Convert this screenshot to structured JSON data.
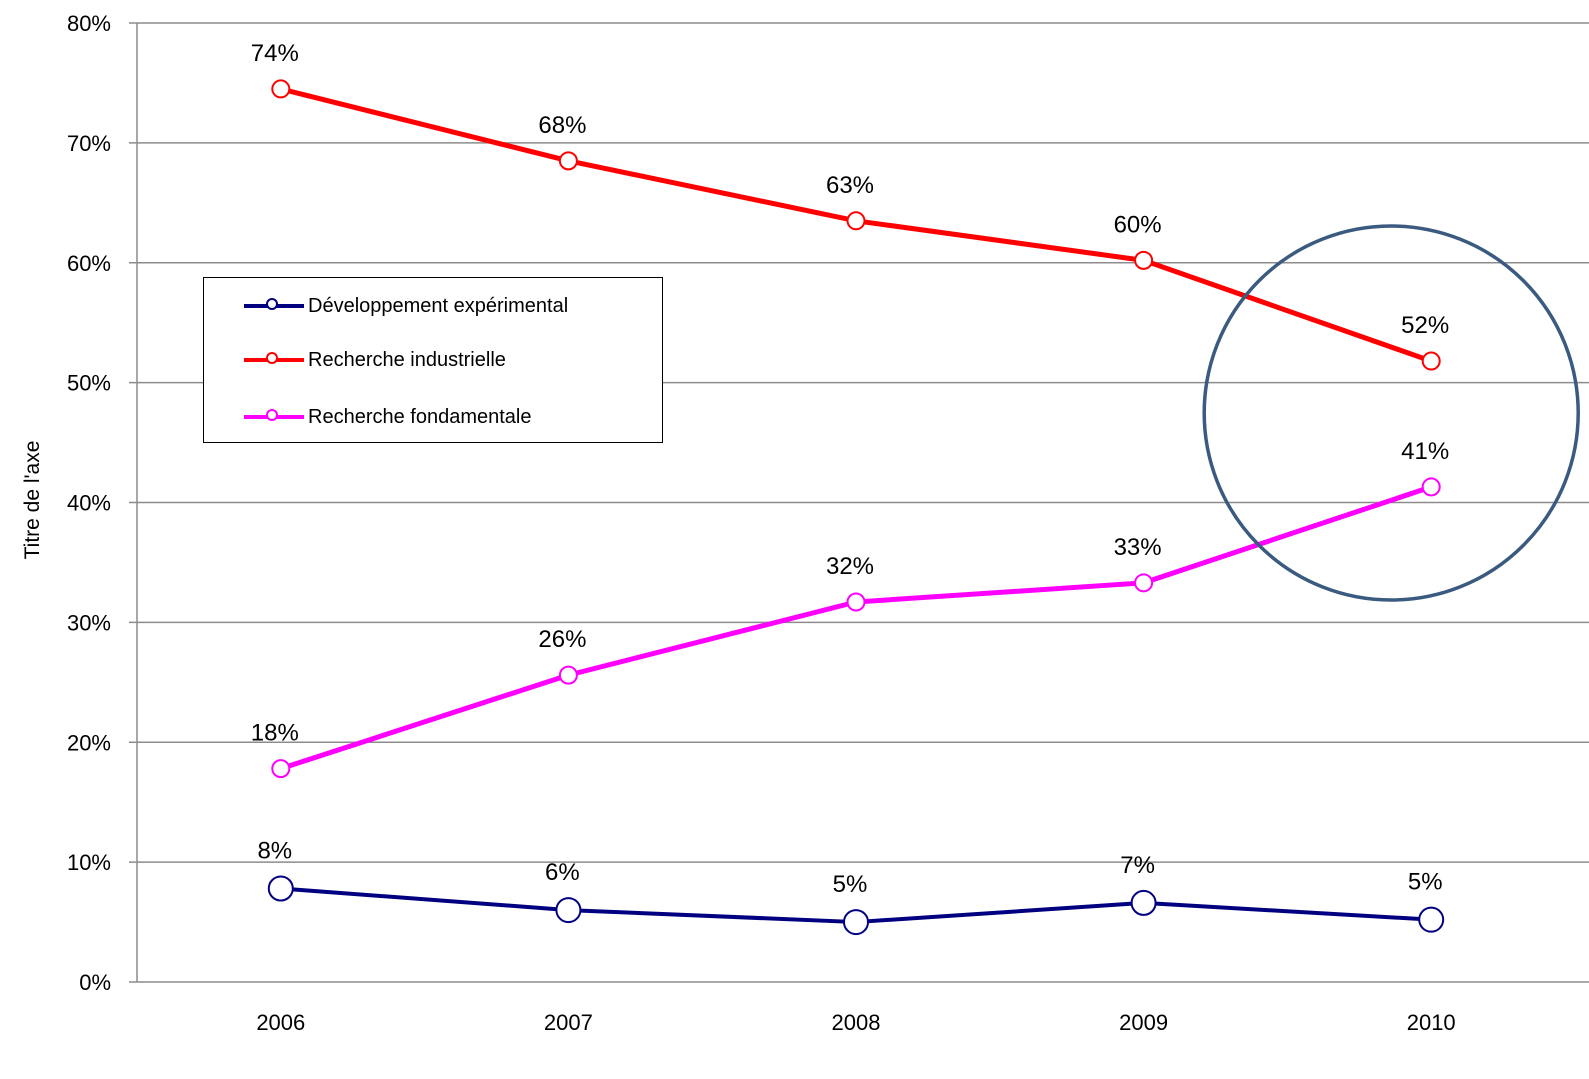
{
  "chart_data": {
    "type": "line",
    "title": "",
    "xlabel": "",
    "ylabel": "Titre de l'axe",
    "categories": [
      "2006",
      "2007",
      "2008",
      "2009",
      "2010"
    ],
    "y_ticks": [
      "0%",
      "10%",
      "20%",
      "30%",
      "40%",
      "50%",
      "60%",
      "70%",
      "80%"
    ],
    "ylim": [
      0,
      80
    ],
    "grid": true,
    "legend_position": "left-middle",
    "series": [
      {
        "name": "Développement expérimental",
        "color": "#000080",
        "values": [
          7.8,
          6.0,
          5.0,
          6.6,
          5.2
        ],
        "labels": [
          "8%",
          "6%",
          "5%",
          "7%",
          "5%"
        ]
      },
      {
        "name": "Recherche industrielle",
        "color": "#ff0000",
        "values": [
          74.5,
          68.5,
          63.5,
          60.2,
          51.8
        ],
        "labels": [
          "74%",
          "68%",
          "63%",
          "60%",
          "52%"
        ]
      },
      {
        "name": "Recherche fondamentale",
        "color": "#ff00ff",
        "values": [
          17.8,
          25.6,
          31.7,
          33.3,
          41.3
        ],
        "labels": [
          "18%",
          "26%",
          "32%",
          "33%",
          "41%"
        ]
      }
    ],
    "annotation": {
      "shape": "circle-highlight",
      "color": "#3a5a80",
      "x_category": "2010"
    }
  }
}
